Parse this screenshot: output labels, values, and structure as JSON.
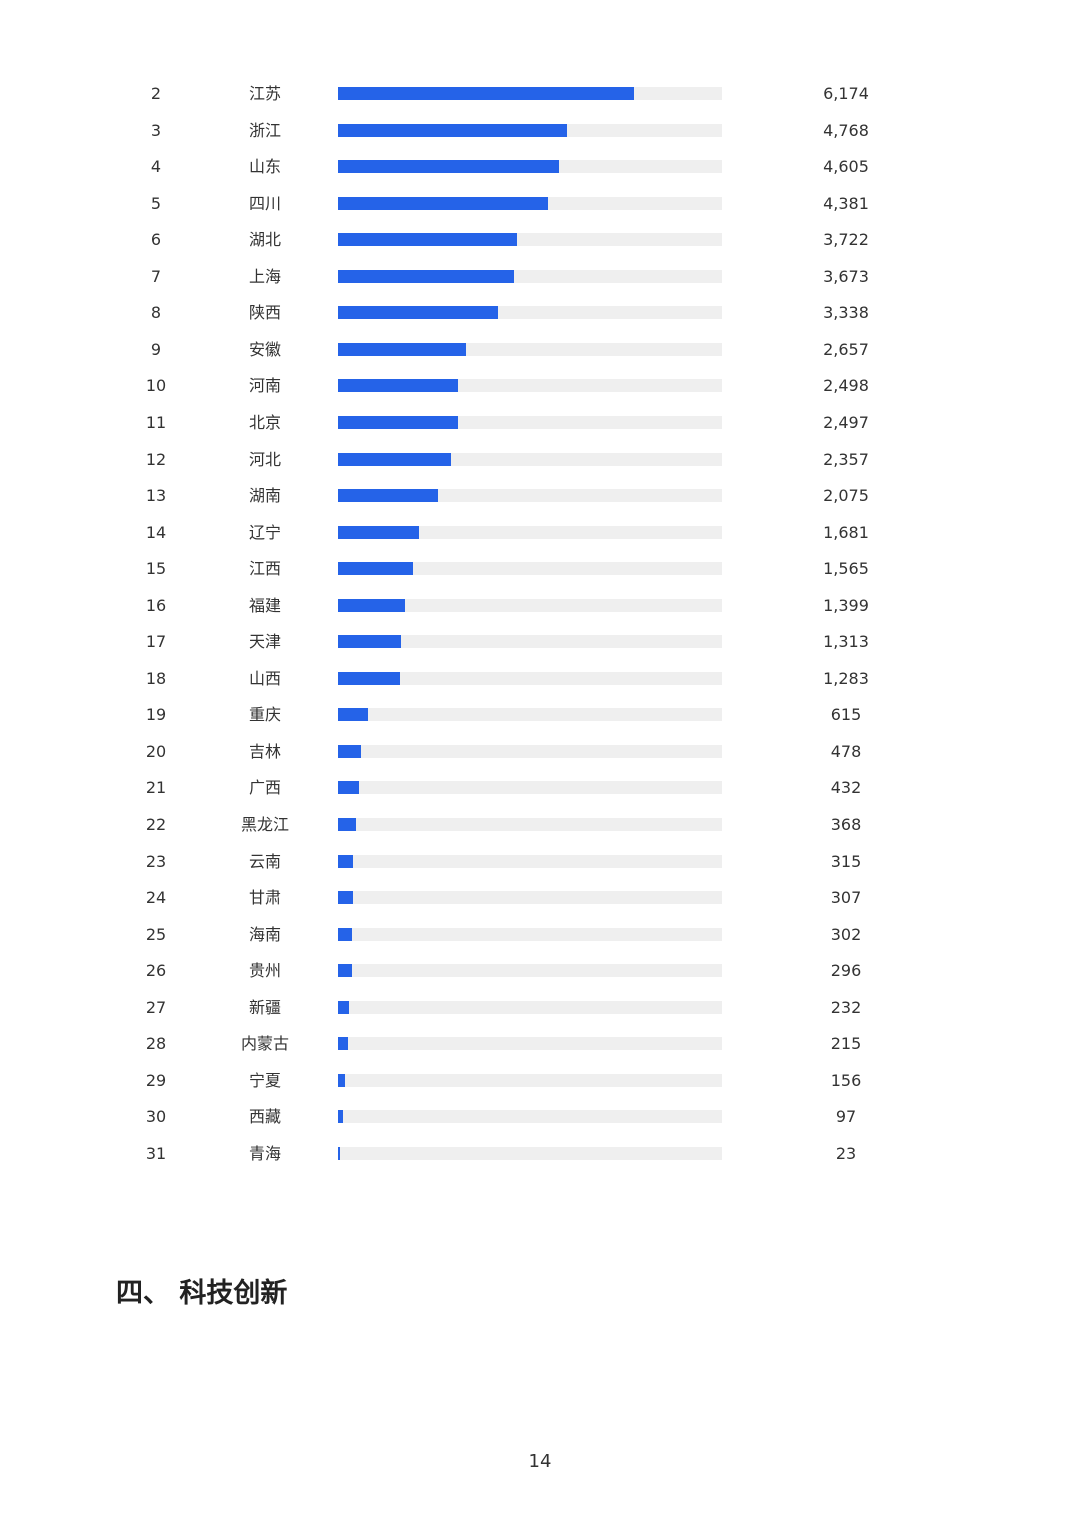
{
  "chart_data": {
    "type": "bar",
    "orientation": "horizontal",
    "bar_color": "#2563e8",
    "track_color": "#efefef",
    "xlim": [
      0,
      8000
    ],
    "rows": [
      {
        "rank": "2",
        "region": "江苏",
        "value": 6174,
        "value_label": "6,174"
      },
      {
        "rank": "3",
        "region": "浙江",
        "value": 4768,
        "value_label": "4,768"
      },
      {
        "rank": "4",
        "region": "山东",
        "value": 4605,
        "value_label": "4,605"
      },
      {
        "rank": "5",
        "region": "四川",
        "value": 4381,
        "value_label": "4,381"
      },
      {
        "rank": "6",
        "region": "湖北",
        "value": 3722,
        "value_label": "3,722"
      },
      {
        "rank": "7",
        "region": "上海",
        "value": 3673,
        "value_label": "3,673"
      },
      {
        "rank": "8",
        "region": "陕西",
        "value": 3338,
        "value_label": "3,338"
      },
      {
        "rank": "9",
        "region": "安徽",
        "value": 2657,
        "value_label": "2,657"
      },
      {
        "rank": "10",
        "region": "河南",
        "value": 2498,
        "value_label": "2,498"
      },
      {
        "rank": "11",
        "region": "北京",
        "value": 2497,
        "value_label": "2,497"
      },
      {
        "rank": "12",
        "region": "河北",
        "value": 2357,
        "value_label": "2,357"
      },
      {
        "rank": "13",
        "region": "湖南",
        "value": 2075,
        "value_label": "2,075"
      },
      {
        "rank": "14",
        "region": "辽宁",
        "value": 1681,
        "value_label": "1,681"
      },
      {
        "rank": "15",
        "region": "江西",
        "value": 1565,
        "value_label": "1,565"
      },
      {
        "rank": "16",
        "region": "福建",
        "value": 1399,
        "value_label": "1,399"
      },
      {
        "rank": "17",
        "region": "天津",
        "value": 1313,
        "value_label": "1,313"
      },
      {
        "rank": "18",
        "region": "山西",
        "value": 1283,
        "value_label": "1,283"
      },
      {
        "rank": "19",
        "region": "重庆",
        "value": 615,
        "value_label": "615"
      },
      {
        "rank": "20",
        "region": "吉林",
        "value": 478,
        "value_label": "478"
      },
      {
        "rank": "21",
        "region": "广西",
        "value": 432,
        "value_label": "432"
      },
      {
        "rank": "22",
        "region": "黑龙江",
        "value": 368,
        "value_label": "368"
      },
      {
        "rank": "23",
        "region": "云南",
        "value": 315,
        "value_label": "315"
      },
      {
        "rank": "24",
        "region": "甘肃",
        "value": 307,
        "value_label": "307"
      },
      {
        "rank": "25",
        "region": "海南",
        "value": 302,
        "value_label": "302"
      },
      {
        "rank": "26",
        "region": "贵州",
        "value": 296,
        "value_label": "296"
      },
      {
        "rank": "27",
        "region": "新疆",
        "value": 232,
        "value_label": "232"
      },
      {
        "rank": "28",
        "region": "内蒙古",
        "value": 215,
        "value_label": "215"
      },
      {
        "rank": "29",
        "region": "宁夏",
        "value": 156,
        "value_label": "156"
      },
      {
        "rank": "30",
        "region": "西藏",
        "value": 97,
        "value_label": "97"
      },
      {
        "rank": "31",
        "region": "青海",
        "value": 23,
        "value_label": "23"
      }
    ]
  },
  "section": {
    "heading": "四、 科技创新"
  },
  "footer": {
    "page_number": "14"
  }
}
